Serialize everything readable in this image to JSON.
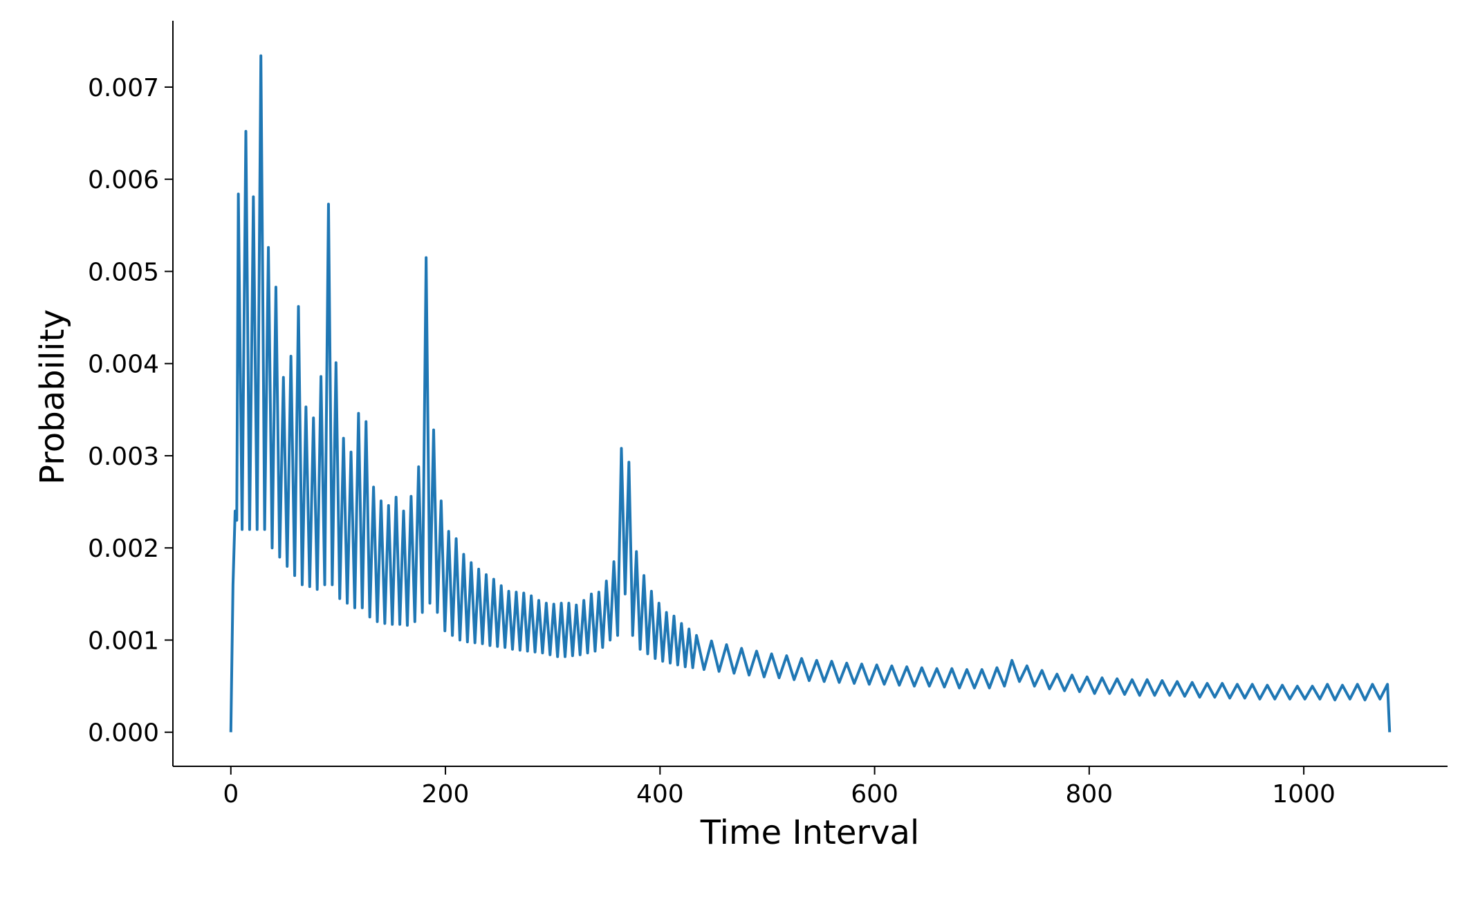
{
  "chart_data": {
    "type": "line",
    "xlabel": "Time Interval",
    "ylabel": "Probability",
    "xlim": [
      -54,
      1134
    ],
    "ylim": [
      -0.00037,
      0.00772
    ],
    "xticks": [
      0,
      200,
      400,
      600,
      800,
      1000
    ],
    "yticks": [
      {
        "value": 0,
        "label": "0.000"
      },
      {
        "value": 0.001,
        "label": "0.001"
      },
      {
        "value": 0.002,
        "label": "0.002"
      },
      {
        "value": 0.003,
        "label": "0.003"
      },
      {
        "value": 0.004,
        "label": "0.004"
      },
      {
        "value": 0.005,
        "label": "0.005"
      },
      {
        "value": 0.006,
        "label": "0.006"
      },
      {
        "value": 0.007,
        "label": "0.007"
      }
    ],
    "x": [
      0,
      2,
      4,
      5.5,
      7,
      10.5,
      14,
      17.5,
      21,
      24.5,
      28,
      31.5,
      35,
      38.5,
      42,
      45.5,
      49,
      52.5,
      56,
      59.5,
      63,
      66.5,
      70,
      73.5,
      77,
      80.5,
      84,
      87.5,
      91,
      94.5,
      98,
      101.5,
      105,
      108.5,
      112,
      115.5,
      119,
      122.5,
      126,
      129.5,
      133,
      136.5,
      140,
      143.5,
      147,
      150.5,
      154,
      157.5,
      161,
      164.5,
      168,
      171.5,
      175,
      178.5,
      182,
      185.5,
      189,
      192.5,
      196,
      199.5,
      203,
      206.5,
      210,
      213.5,
      217,
      220.5,
      224,
      227.5,
      231,
      234.5,
      238,
      241.5,
      245,
      248.5,
      252,
      255.5,
      259,
      262.5,
      266,
      269.5,
      273,
      276.5,
      280,
      283.5,
      287,
      290.5,
      294,
      297.5,
      301,
      304.5,
      308,
      311.5,
      315,
      318.5,
      322,
      325.5,
      329,
      332.5,
      336,
      339.5,
      343,
      346.5,
      350,
      353.5,
      357,
      360.5,
      364,
      367.5,
      371,
      374.5,
      378,
      381.5,
      385,
      388.5,
      392,
      395.5,
      399,
      402.5,
      406,
      409.5,
      413,
      416.5,
      420,
      423.5,
      427,
      430.5,
      434,
      441,
      448,
      455,
      462,
      469,
      476,
      483,
      490,
      497,
      504,
      511,
      518,
      525,
      532,
      539,
      546,
      553,
      560,
      567,
      574,
      581,
      588,
      595,
      602,
      609,
      616,
      623,
      630,
      637,
      644,
      651,
      658,
      665,
      672,
      679,
      686,
      693,
      700,
      707,
      714,
      721,
      728,
      735,
      742,
      749,
      756,
      763,
      770,
      777,
      784,
      791,
      798,
      805,
      812,
      819,
      826,
      833,
      840,
      847,
      854,
      861,
      868,
      875,
      882,
      889,
      896,
      903,
      910,
      917,
      924,
      931,
      938,
      945,
      952,
      959,
      966,
      973,
      980,
      987,
      994,
      1001,
      1008,
      1015,
      1022,
      1029,
      1036,
      1043,
      1050,
      1057,
      1064,
      1071,
      1078,
      1080
    ],
    "series": [
      {
        "color": "#1f77b4",
        "values": [
          0,
          0.0016,
          0.0024,
          0.0023,
          0.00584,
          0.0022,
          0.00652,
          0.0022,
          0.00581,
          0.0022,
          0.00734,
          0.0022,
          0.00526,
          0.002,
          0.00483,
          0.0019,
          0.00385,
          0.0018,
          0.00408,
          0.0017,
          0.00462,
          0.0016,
          0.00353,
          0.00158,
          0.00341,
          0.00155,
          0.00386,
          0.0016,
          0.00573,
          0.0016,
          0.00401,
          0.00145,
          0.00319,
          0.0014,
          0.00304,
          0.00135,
          0.00346,
          0.00135,
          0.00337,
          0.00125,
          0.00266,
          0.0012,
          0.00251,
          0.00118,
          0.00246,
          0.00117,
          0.00255,
          0.00117,
          0.0024,
          0.00116,
          0.00256,
          0.0012,
          0.00288,
          0.0013,
          0.00515,
          0.0014,
          0.00328,
          0.0013,
          0.00251,
          0.0011,
          0.00218,
          0.00105,
          0.0021,
          0.001,
          0.00193,
          0.00098,
          0.00184,
          0.00097,
          0.00177,
          0.00096,
          0.00171,
          0.00094,
          0.00166,
          0.00093,
          0.00159,
          0.00092,
          0.00153,
          0.0009,
          0.00152,
          0.00089,
          0.00151,
          0.00088,
          0.00148,
          0.00087,
          0.00143,
          0.00086,
          0.0014,
          0.00084,
          0.00139,
          0.00082,
          0.0014,
          0.00082,
          0.0014,
          0.00083,
          0.00138,
          0.00084,
          0.00143,
          0.00086,
          0.0015,
          0.00088,
          0.00152,
          0.00092,
          0.00164,
          0.001,
          0.00185,
          0.00105,
          0.00308,
          0.0015,
          0.00293,
          0.00105,
          0.00196,
          0.0009,
          0.0017,
          0.00085,
          0.00153,
          0.0008,
          0.0014,
          0.00077,
          0.0013,
          0.00075,
          0.00126,
          0.00073,
          0.00118,
          0.00071,
          0.00112,
          0.0007,
          0.00105,
          0.00068,
          0.00099,
          0.00066,
          0.00095,
          0.00064,
          0.00091,
          0.00062,
          0.00088,
          0.0006,
          0.00085,
          0.00059,
          0.00083,
          0.00057,
          0.0008,
          0.00056,
          0.00078,
          0.00055,
          0.00077,
          0.00054,
          0.00075,
          0.00053,
          0.00074,
          0.00052,
          0.00073,
          0.00052,
          0.00072,
          0.00051,
          0.00071,
          0.0005,
          0.0007,
          0.0005,
          0.00069,
          0.00049,
          0.00069,
          0.00048,
          0.00068,
          0.00048,
          0.00068,
          0.00048,
          0.0007,
          0.0005,
          0.00078,
          0.00055,
          0.00072,
          0.0005,
          0.00067,
          0.00047,
          0.00063,
          0.00045,
          0.00062,
          0.00044,
          0.0006,
          0.00042,
          0.00059,
          0.00042,
          0.00058,
          0.00041,
          0.00057,
          0.0004,
          0.00057,
          0.0004,
          0.00056,
          0.0004,
          0.00055,
          0.00039,
          0.00054,
          0.00038,
          0.00053,
          0.00038,
          0.00053,
          0.00037,
          0.00052,
          0.00037,
          0.00052,
          0.00036,
          0.00051,
          0.00036,
          0.00051,
          0.00036,
          0.0005,
          0.00036,
          0.0005,
          0.00036,
          0.00052,
          0.00035,
          0.00051,
          0.00036,
          0.00052,
          0.00035,
          0.00052,
          0.00036,
          0.00052,
          0
        ]
      }
    ]
  }
}
